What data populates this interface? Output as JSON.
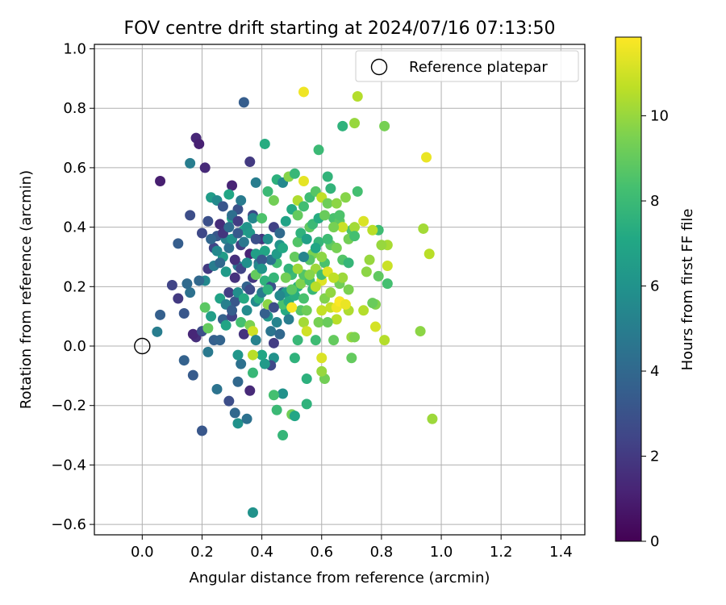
{
  "chart_data": {
    "type": "scatter",
    "title": "FOV centre drift starting at 2024/07/16 07:13:50",
    "xlabel": "Angular distance from reference (arcmin)",
    "ylabel": "Rotation from reference (arcmin)",
    "xlim": [
      -0.16,
      1.48
    ],
    "ylim": [
      -0.635,
      1.015
    ],
    "x_ticks": [
      0.0,
      0.2,
      0.4,
      0.6,
      0.8,
      1.0,
      1.2,
      1.4
    ],
    "x_tick_labels": [
      "0.0",
      "0.2",
      "0.4",
      "0.6",
      "0.8",
      "1.0",
      "1.2",
      "1.4"
    ],
    "y_ticks": [
      -0.6,
      -0.4,
      -0.2,
      0.0,
      0.2,
      0.4,
      0.6,
      0.8,
      1.0
    ],
    "y_tick_labels": [
      "−0.6",
      "−0.4",
      "−0.2",
      "0.0",
      "0.2",
      "0.4",
      "0.6",
      "0.8",
      "1.0"
    ],
    "grid": true,
    "legend": {
      "label": "Reference platepar",
      "location": "top-right"
    },
    "reference_point": [
      0.0,
      0.0
    ],
    "colorbar": {
      "label": "Hours from first FF file",
      "range": [
        0,
        11.85
      ],
      "ticks": [
        0,
        2,
        4,
        6,
        8,
        10
      ],
      "tick_labels": [
        "0",
        "2",
        "4",
        "6",
        "8",
        "10"
      ],
      "colormap": "viridis"
    },
    "points": [
      [
        0.06,
        0.555,
        1.0
      ],
      [
        0.18,
        0.7,
        1.3
      ],
      [
        0.19,
        0.68,
        1.1
      ],
      [
        0.21,
        0.6,
        1.4
      ],
      [
        0.34,
        0.82,
        3.5
      ],
      [
        0.3,
        0.54,
        1.2
      ],
      [
        0.32,
        0.46,
        3.0
      ],
      [
        0.36,
        0.62,
        2.0
      ],
      [
        0.38,
        0.55,
        5.0
      ],
      [
        0.41,
        0.68,
        7.3
      ],
      [
        0.16,
        0.615,
        5.0
      ],
      [
        0.16,
        0.44,
        2.8
      ],
      [
        0.12,
        0.345,
        3.5
      ],
      [
        0.1,
        0.205,
        2.4
      ],
      [
        0.06,
        0.105,
        3.6
      ],
      [
        0.05,
        0.048,
        5.0
      ],
      [
        0.14,
        -0.048,
        3.7
      ],
      [
        0.17,
        -0.098,
        3.4
      ],
      [
        0.2,
        -0.285,
        3.2
      ],
      [
        0.25,
        -0.145,
        4.5
      ],
      [
        0.29,
        -0.185,
        2.8
      ],
      [
        0.31,
        -0.225,
        4.0
      ],
      [
        0.32,
        -0.26,
        6.0
      ],
      [
        0.35,
        -0.245,
        4.4
      ],
      [
        0.37,
        -0.56,
        6.0
      ],
      [
        0.21,
        0.22,
        5.5
      ],
      [
        0.22,
        0.26,
        2.0
      ],
      [
        0.24,
        0.33,
        2.4
      ],
      [
        0.25,
        0.37,
        3.2
      ],
      [
        0.26,
        0.41,
        1.5
      ],
      [
        0.27,
        0.3,
        6.5
      ],
      [
        0.28,
        0.36,
        5.2
      ],
      [
        0.29,
        0.18,
        2.2
      ],
      [
        0.3,
        0.43,
        6.8
      ],
      [
        0.31,
        0.23,
        1.7
      ],
      [
        0.32,
        0.27,
        4.8
      ],
      [
        0.33,
        0.34,
        2.2
      ],
      [
        0.34,
        0.39,
        7.0
      ],
      [
        0.35,
        0.2,
        3.8
      ],
      [
        0.36,
        0.31,
        1.2
      ],
      [
        0.37,
        0.44,
        2.6
      ],
      [
        0.38,
        0.15,
        5.6
      ],
      [
        0.39,
        0.28,
        4.0
      ],
      [
        0.4,
        0.36,
        1.8
      ],
      [
        0.41,
        0.22,
        7.6
      ],
      [
        0.42,
        0.1,
        6.3
      ],
      [
        0.43,
        0.05,
        4.6
      ],
      [
        0.44,
        0.01,
        2.1
      ],
      [
        0.45,
        0.28,
        8.2
      ],
      [
        0.46,
        0.34,
        6.1
      ],
      [
        0.47,
        0.18,
        3.4
      ],
      [
        0.48,
        0.12,
        7.2
      ],
      [
        0.49,
        0.09,
        5.0
      ],
      [
        0.5,
        0.24,
        8.0
      ],
      [
        0.51,
        0.3,
        9.0
      ],
      [
        0.52,
        0.2,
        7.5
      ],
      [
        0.53,
        0.12,
        8.7
      ],
      [
        0.54,
        0.08,
        10.2
      ],
      [
        0.55,
        0.05,
        11.0
      ],
      [
        0.56,
        0.4,
        8.9
      ],
      [
        0.57,
        0.31,
        9.5
      ],
      [
        0.58,
        0.26,
        10.1
      ],
      [
        0.59,
        0.35,
        7.8
      ],
      [
        0.6,
        0.22,
        11.3
      ],
      [
        0.61,
        0.16,
        9.6
      ],
      [
        0.62,
        0.57,
        7.7
      ],
      [
        0.63,
        0.13,
        10.8
      ],
      [
        0.64,
        0.43,
        8.4
      ],
      [
        0.65,
        0.09,
        10.6
      ],
      [
        0.66,
        0.21,
        9.3
      ],
      [
        0.67,
        0.74,
        7.6
      ],
      [
        0.68,
        0.5,
        9.7
      ],
      [
        0.69,
        0.12,
        10.4
      ],
      [
        0.7,
        0.39,
        8.5
      ],
      [
        0.71,
        0.75,
        10.0
      ],
      [
        0.72,
        0.84,
        10.5
      ],
      [
        0.74,
        0.42,
        11.2
      ],
      [
        0.76,
        0.29,
        10.0
      ],
      [
        0.78,
        0.14,
        9.6
      ],
      [
        0.79,
        0.39,
        8.1
      ],
      [
        0.81,
        0.74,
        9.4
      ],
      [
        0.81,
        0.02,
        10.5
      ],
      [
        0.82,
        0.21,
        8.3
      ],
      [
        0.82,
        0.27,
        10.9
      ],
      [
        0.82,
        0.34,
        10.3
      ],
      [
        0.93,
        0.05,
        9.8
      ],
      [
        0.94,
        0.395,
        10.2
      ],
      [
        0.95,
        0.635,
        11.5
      ],
      [
        0.96,
        0.31,
        10.6
      ],
      [
        0.97,
        -0.245,
        10.1
      ],
      [
        0.54,
        0.855,
        11.6
      ],
      [
        0.54,
        0.555,
        11.4
      ],
      [
        0.59,
        0.66,
        8.0
      ],
      [
        0.5,
        -0.23,
        9.3
      ],
      [
        0.51,
        -0.235,
        7.0
      ],
      [
        0.47,
        -0.3,
        7.8
      ],
      [
        0.47,
        -0.16,
        6.0
      ],
      [
        0.44,
        -0.165,
        8.3
      ],
      [
        0.45,
        -0.215,
        8.0
      ],
      [
        0.55,
        -0.195,
        7.6
      ],
      [
        0.55,
        -0.11,
        7.5
      ],
      [
        0.61,
        -0.11,
        9.3
      ],
      [
        0.6,
        -0.085,
        10.0
      ],
      [
        0.6,
        -0.04,
        11.2
      ],
      [
        0.51,
        -0.04,
        7.6
      ],
      [
        0.44,
        -0.04,
        6.0
      ],
      [
        0.43,
        -0.065,
        2.6
      ],
      [
        0.41,
        -0.06,
        6.4
      ],
      [
        0.4,
        -0.03,
        7.0
      ],
      [
        0.37,
        -0.03,
        10.6
      ],
      [
        0.37,
        -0.09,
        7.9
      ],
      [
        0.33,
        -0.06,
        4.4
      ],
      [
        0.32,
        -0.12,
        4.0
      ],
      [
        0.36,
        -0.15,
        1.4
      ],
      [
        0.32,
        -0.03,
        6.2
      ],
      [
        0.22,
        -0.02,
        4.8
      ],
      [
        0.24,
        0.02,
        3.6
      ],
      [
        0.18,
        0.03,
        1.6
      ],
      [
        0.17,
        0.04,
        1.3
      ],
      [
        0.2,
        0.05,
        2.8
      ],
      [
        0.14,
        0.11,
        3.2
      ],
      [
        0.12,
        0.16,
        2.0
      ],
      [
        0.16,
        0.18,
        4.4
      ],
      [
        0.15,
        0.21,
        4.1
      ],
      [
        0.19,
        0.22,
        4.0
      ],
      [
        0.21,
        0.13,
        8.8
      ],
      [
        0.22,
        0.06,
        9.0
      ],
      [
        0.23,
        0.1,
        6.6
      ],
      [
        0.26,
        0.02,
        3.8
      ],
      [
        0.27,
        0.09,
        3.7
      ],
      [
        0.28,
        0.07,
        6.9
      ],
      [
        0.3,
        0.1,
        2.3
      ],
      [
        0.31,
        0.15,
        3.2
      ],
      [
        0.33,
        0.08,
        8.3
      ],
      [
        0.34,
        0.04,
        1.7
      ],
      [
        0.35,
        0.12,
        5.7
      ],
      [
        0.36,
        0.07,
        9.5
      ],
      [
        0.37,
        0.05,
        11.0
      ],
      [
        0.38,
        0.02,
        5.2
      ],
      [
        0.39,
        0.16,
        7.4
      ],
      [
        0.4,
        0.18,
        4.9
      ],
      [
        0.41,
        0.11,
        3.6
      ],
      [
        0.42,
        0.14,
        9.8
      ],
      [
        0.43,
        0.2,
        3.0
      ],
      [
        0.44,
        0.23,
        7.8
      ],
      [
        0.45,
        0.08,
        5.3
      ],
      [
        0.46,
        0.04,
        4.0
      ],
      [
        0.47,
        0.14,
        8.4
      ],
      [
        0.48,
        0.18,
        6.4
      ],
      [
        0.49,
        0.15,
        7.2
      ],
      [
        0.5,
        0.13,
        11.7
      ],
      [
        0.51,
        0.17,
        7.4
      ],
      [
        0.52,
        0.02,
        7.9
      ],
      [
        0.53,
        0.21,
        9.6
      ],
      [
        0.54,
        0.24,
        8.6
      ],
      [
        0.55,
        0.12,
        9.2
      ],
      [
        0.56,
        0.29,
        8.7
      ],
      [
        0.57,
        0.19,
        7.9
      ],
      [
        0.58,
        0.02,
        8.1
      ],
      [
        0.59,
        0.08,
        9.4
      ],
      [
        0.6,
        0.12,
        10.8
      ],
      [
        0.61,
        0.28,
        8.4
      ],
      [
        0.62,
        0.08,
        9.1
      ],
      [
        0.63,
        0.18,
        9.9
      ],
      [
        0.64,
        0.02,
        9.0
      ],
      [
        0.65,
        0.13,
        11.6
      ],
      [
        0.66,
        0.15,
        11.8
      ],
      [
        0.67,
        0.23,
        10.1
      ],
      [
        0.68,
        0.14,
        11.5
      ],
      [
        0.7,
        0.03,
        10.0
      ],
      [
        0.69,
        0.19,
        9.5
      ],
      [
        0.7,
        -0.04,
        9.0
      ],
      [
        0.71,
        0.03,
        9.5
      ],
      [
        0.74,
        0.12,
        10.5
      ],
      [
        0.75,
        0.25,
        9.8
      ],
      [
        0.77,
        0.145,
        9.1
      ],
      [
        0.77,
        0.39,
        10.6
      ],
      [
        0.78,
        0.065,
        11.1
      ],
      [
        0.79,
        0.235,
        8.9
      ],
      [
        0.8,
        0.34,
        10.0
      ],
      [
        0.23,
        0.5,
        6.5
      ],
      [
        0.25,
        0.49,
        5.6
      ],
      [
        0.27,
        0.47,
        3.1
      ],
      [
        0.29,
        0.51,
        7.0
      ],
      [
        0.3,
        0.44,
        4.3
      ],
      [
        0.32,
        0.42,
        2.1
      ],
      [
        0.33,
        0.49,
        4.9
      ],
      [
        0.35,
        0.4,
        6.1
      ],
      [
        0.37,
        0.43,
        5.4
      ],
      [
        0.38,
        0.31,
        6.6
      ],
      [
        0.4,
        0.43,
        8.5
      ],
      [
        0.42,
        0.52,
        8.0
      ],
      [
        0.44,
        0.49,
        9.3
      ],
      [
        0.45,
        0.56,
        7.5
      ],
      [
        0.47,
        0.55,
        5.5
      ],
      [
        0.49,
        0.57,
        9.7
      ],
      [
        0.51,
        0.58,
        7.9
      ],
      [
        0.52,
        0.49,
        10.4
      ],
      [
        0.54,
        0.47,
        8.2
      ],
      [
        0.56,
        0.5,
        8.1
      ],
      [
        0.58,
        0.52,
        8.7
      ],
      [
        0.6,
        0.5,
        10.7
      ],
      [
        0.62,
        0.48,
        9.2
      ],
      [
        0.63,
        0.53,
        7.7
      ],
      [
        0.65,
        0.48,
        9.8
      ],
      [
        0.66,
        0.42,
        8.8
      ],
      [
        0.67,
        0.4,
        10.9
      ],
      [
        0.69,
        0.36,
        9.3
      ],
      [
        0.71,
        0.4,
        10.2
      ],
      [
        0.72,
        0.52,
        8.3
      ],
      [
        0.24,
        0.27,
        5.0
      ],
      [
        0.26,
        0.28,
        4.0
      ],
      [
        0.28,
        0.25,
        6.4
      ],
      [
        0.29,
        0.33,
        4.4
      ],
      [
        0.31,
        0.29,
        1.6
      ],
      [
        0.33,
        0.26,
        2.4
      ],
      [
        0.35,
        0.28,
        5.9
      ],
      [
        0.37,
        0.23,
        1.9
      ],
      [
        0.39,
        0.27,
        5.5
      ],
      [
        0.41,
        0.32,
        6.9
      ],
      [
        0.43,
        0.29,
        4.5
      ],
      [
        0.45,
        0.31,
        6.5
      ],
      [
        0.47,
        0.33,
        7.1
      ],
      [
        0.49,
        0.26,
        7.7
      ],
      [
        0.52,
        0.35,
        8.6
      ],
      [
        0.53,
        0.38,
        7.6
      ],
      [
        0.55,
        0.36,
        6.7
      ],
      [
        0.57,
        0.41,
        8.0
      ],
      [
        0.59,
        0.43,
        7.3
      ],
      [
        0.61,
        0.44,
        9.1
      ],
      [
        0.63,
        0.34,
        8.9
      ],
      [
        0.65,
        0.33,
        9.4
      ],
      [
        0.67,
        0.29,
        8.6
      ],
      [
        0.69,
        0.28,
        7.8
      ],
      [
        0.71,
        0.37,
        8.3
      ],
      [
        0.2,
        0.38,
        2.6
      ],
      [
        0.22,
        0.42,
        2.9
      ],
      [
        0.23,
        0.36,
        3.9
      ],
      [
        0.25,
        0.32,
        5.5
      ],
      [
        0.27,
        0.38,
        1.8
      ],
      [
        0.29,
        0.4,
        4.2
      ],
      [
        0.3,
        0.36,
        6.0
      ],
      [
        0.32,
        0.38,
        3.3
      ],
      [
        0.34,
        0.35,
        4.7
      ],
      [
        0.36,
        0.38,
        6.3
      ],
      [
        0.38,
        0.36,
        2.9
      ],
      [
        0.4,
        0.29,
        3.3
      ],
      [
        0.42,
        0.36,
        5.8
      ],
      [
        0.44,
        0.4,
        2.3
      ],
      [
        0.46,
        0.38,
        4.1
      ],
      [
        0.48,
        0.42,
        6.8
      ],
      [
        0.5,
        0.46,
        7.2
      ],
      [
        0.52,
        0.44,
        9.0
      ],
      [
        0.54,
        0.3,
        5.3
      ],
      [
        0.56,
        0.22,
        8.3
      ],
      [
        0.58,
        0.33,
        7.0
      ],
      [
        0.6,
        0.3,
        9.8
      ],
      [
        0.62,
        0.36,
        8.1
      ],
      [
        0.64,
        0.4,
        9.4
      ],
      [
        0.66,
        0.44,
        8.5
      ],
      [
        0.26,
        0.16,
        6.8
      ],
      [
        0.28,
        0.14,
        5.1
      ],
      [
        0.3,
        0.12,
        3.5
      ],
      [
        0.32,
        0.18,
        5.8
      ],
      [
        0.34,
        0.16,
        7.2
      ],
      [
        0.36,
        0.19,
        2.7
      ],
      [
        0.38,
        0.24,
        9.0
      ],
      [
        0.4,
        0.26,
        6.2
      ],
      [
        0.42,
        0.19,
        7.6
      ],
      [
        0.44,
        0.13,
        2.8
      ],
      [
        0.46,
        0.17,
        5.5
      ],
      [
        0.48,
        0.23,
        9.3
      ],
      [
        0.5,
        0.19,
        8.8
      ],
      [
        0.52,
        0.26,
        10.1
      ],
      [
        0.54,
        0.16,
        8.4
      ],
      [
        0.56,
        0.24,
        9.7
      ],
      [
        0.58,
        0.2,
        10.6
      ],
      [
        0.6,
        0.24,
        8.2
      ],
      [
        0.62,
        0.25,
        11.3
      ],
      [
        0.64,
        0.23,
        10.7
      ]
    ]
  }
}
